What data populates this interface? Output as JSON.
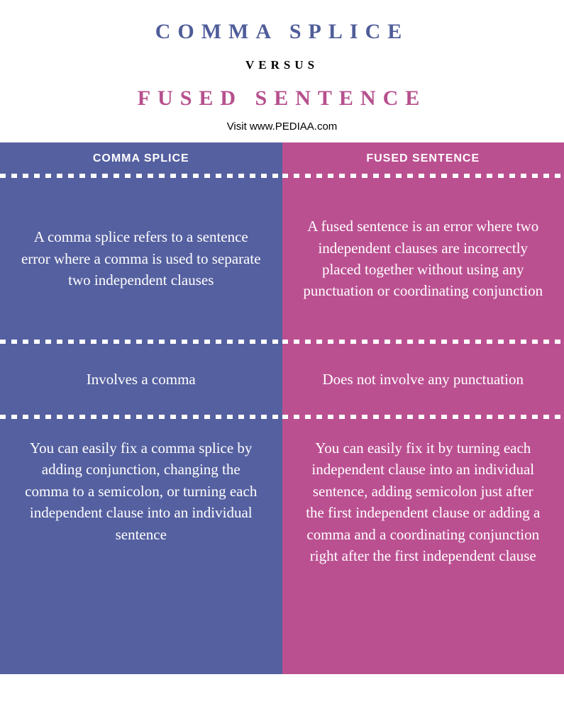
{
  "header": {
    "title_top": "COMMA SPLICE",
    "versus": "VERSUS",
    "title_bottom": "FUSED SENTENCE",
    "visit": "Visit www.PEDIAA.com"
  },
  "colors": {
    "left_bg": "#5560a0",
    "right_bg": "#bb5091",
    "title_top_color": "#4f5d99",
    "title_bottom_color": "#b6508d",
    "text_color": "#ffffff"
  },
  "left": {
    "heading": "COMMA SPLICE",
    "rows": [
      "A comma splice refers to a sentence error where a comma is used to separate two independent clauses",
      "Involves a comma",
      "You can easily fix a comma splice by adding conjunction, changing the comma to a semicolon, or turning each independent clause into an individual sentence"
    ]
  },
  "right": {
    "heading": "FUSED SENTENCE",
    "rows": [
      "A fused sentence is an error where two independent clauses are incorrectly placed together without using any punctuation or coordinating conjunction",
      "Does not involve any punctuation",
      "You can easily fix it by turning each independent clause into an individual sentence, adding semicolon just after the first independent clause or adding a comma and a coordinating conjunction right after the first independent clause"
    ]
  }
}
